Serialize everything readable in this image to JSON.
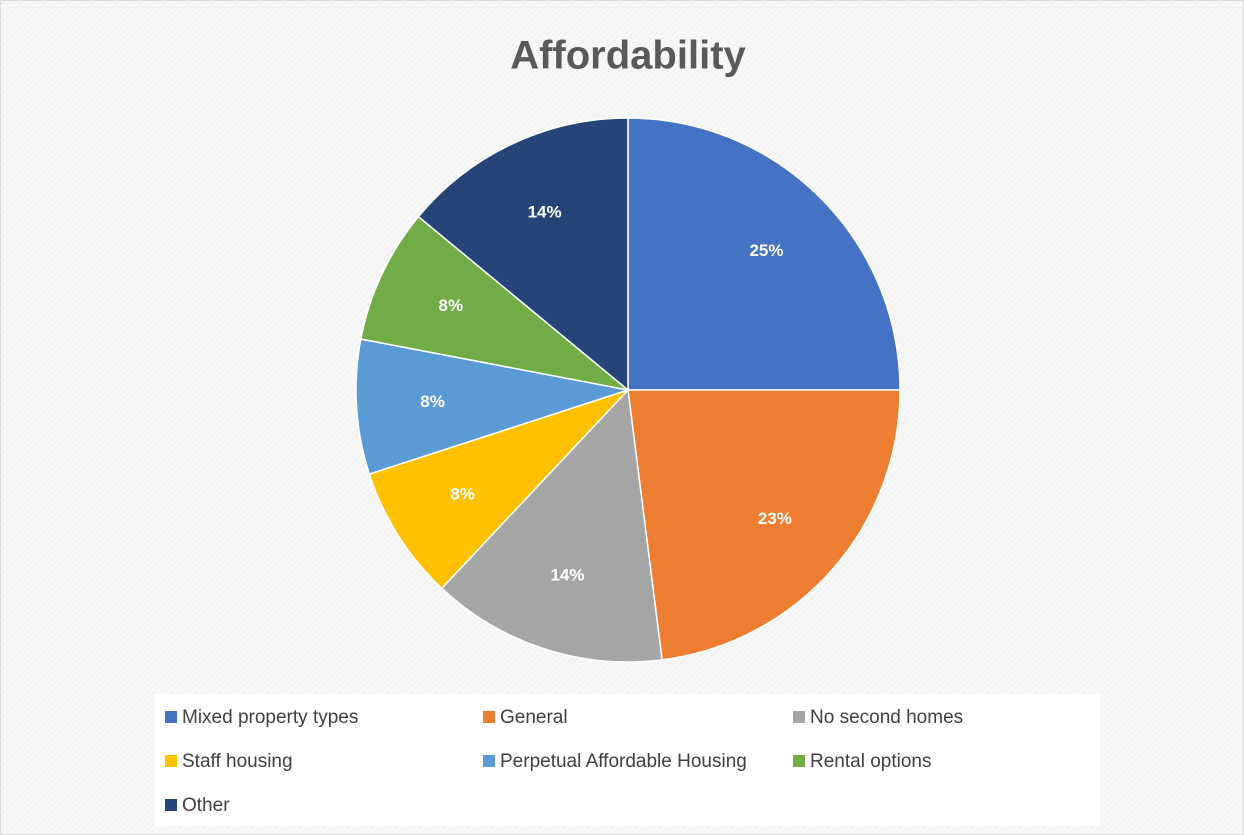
{
  "chart_data": {
    "type": "pie",
    "title": "Affordability",
    "categories": [
      "Mixed property types",
      "General",
      "No second homes",
      "Staff housing",
      "Perpetual Affordable Housing",
      "Rental options",
      "Other"
    ],
    "values": [
      25,
      23,
      14,
      8,
      8,
      8,
      14
    ],
    "value_labels": [
      "25%",
      "23%",
      "14%",
      "8%",
      "8%",
      "8%",
      "14%"
    ],
    "colors": [
      "#4472c4",
      "#ed7d31",
      "#a5a5a5",
      "#ffc000",
      "#5b9bd5",
      "#70ad47",
      "#264478"
    ],
    "legend": "bottom"
  }
}
